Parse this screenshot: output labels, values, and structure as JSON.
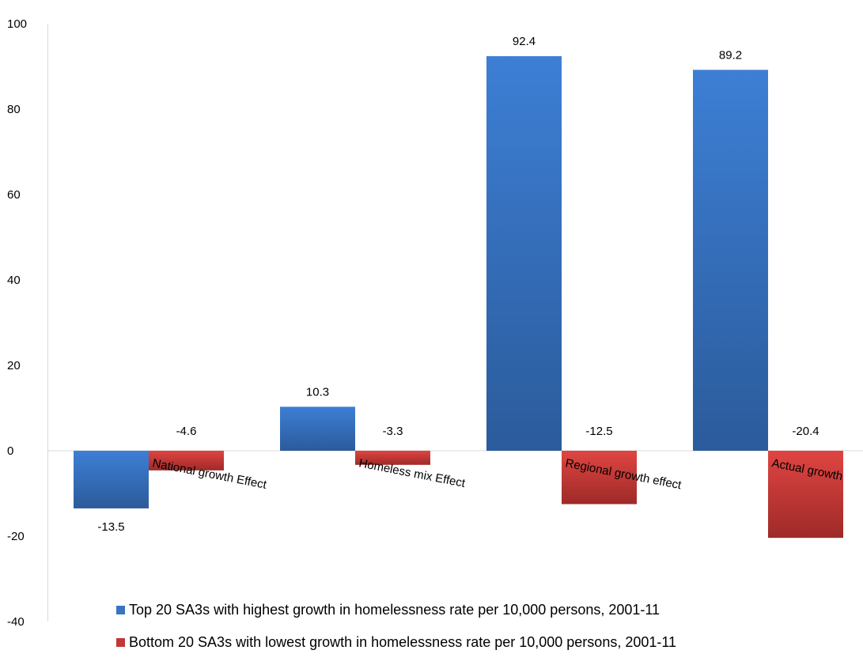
{
  "chart_data": {
    "type": "bar",
    "categories": [
      "National growth Effect",
      "Homeless mix Effect",
      "Regional growth effect",
      "Actual growth"
    ],
    "series": [
      {
        "name": "Top 20 SA3s with highest growth in homelessness rate per 10,000 persons, 2001-11",
        "color": "#3a73c1",
        "values": [
          -13.5,
          10.3,
          92.4,
          89.2
        ],
        "labels": [
          "-13.5",
          "10.3",
          "92.4",
          "89.2"
        ]
      },
      {
        "name": "Bottom 20 SA3s with lowest growth in homelessness rate per 10,000 persons, 2001-11",
        "color": "#c13836",
        "values": [
          -4.6,
          -3.3,
          -12.5,
          -20.4
        ],
        "labels": [
          "-4.6",
          "-3.3",
          "-12.5",
          "-20.4"
        ]
      }
    ],
    "ylim": [
      -40,
      100
    ],
    "yticks": [
      -40,
      -20,
      0,
      20,
      40,
      60,
      80,
      100
    ],
    "ytick_labels": [
      "-40",
      "-20",
      "0",
      "20",
      "40",
      "60",
      "80",
      "100"
    ],
    "grid": false,
    "legend_position": "bottom",
    "title": "",
    "xlabel": "",
    "ylabel": ""
  }
}
